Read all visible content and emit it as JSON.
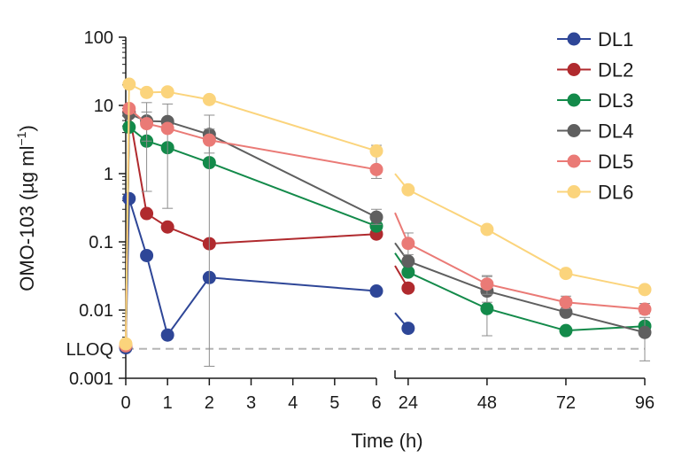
{
  "chart_data": {
    "type": "line",
    "xlabel": "Time (h)",
    "ylabel": "OMO-103 (µg ml",
    "ylabel_superscript": "−1",
    "ylabel_close": ")",
    "yscale": "log",
    "ylim": [
      0.001,
      100
    ],
    "y_ticks": [
      {
        "value": 100,
        "label": "100"
      },
      {
        "value": 10,
        "label": "10"
      },
      {
        "value": 1,
        "label": "1"
      },
      {
        "value": 0.1,
        "label": "0.1"
      },
      {
        "value": 0.01,
        "label": "0.01"
      },
      {
        "value": 0.001,
        "label": "0.001"
      }
    ],
    "lloq": {
      "label": "LLOQ",
      "value": 0.0027
    },
    "x_axis_segments": [
      {
        "range": [
          0,
          6
        ],
        "ticks": [
          0,
          1,
          2,
          3,
          4,
          5,
          6
        ]
      },
      {
        "range": [
          20,
          96
        ],
        "ticks": [
          24,
          48,
          72,
          96
        ]
      }
    ],
    "series": [
      {
        "name": "DL1",
        "color": "#2e4697",
        "points": [
          {
            "x": 0,
            "y": 0.0028
          },
          {
            "x": 0.08,
            "y": 0.43
          },
          {
            "x": 0.5,
            "y": 0.063
          },
          {
            "x": 1,
            "y": 0.0043
          },
          {
            "x": 2,
            "y": 0.03
          },
          {
            "x": 6,
            "y": 0.019
          },
          {
            "x": 24,
            "y": 0.0054
          }
        ],
        "errors": []
      },
      {
        "name": "DL2",
        "color": "#b02a2e",
        "points": [
          {
            "x": 0,
            "y": 0.003
          },
          {
            "x": 0.08,
            "y": 8
          },
          {
            "x": 0.5,
            "y": 0.26
          },
          {
            "x": 1,
            "y": 0.165
          },
          {
            "x": 2,
            "y": 0.094
          },
          {
            "x": 6,
            "y": 0.13
          },
          {
            "x": 24,
            "y": 0.021
          }
        ],
        "errors": []
      },
      {
        "name": "DL3",
        "color": "#138a4a",
        "points": [
          {
            "x": 0,
            "y": 0.003
          },
          {
            "x": 0.08,
            "y": 4.8
          },
          {
            "x": 0.5,
            "y": 3.0
          },
          {
            "x": 1,
            "y": 2.4
          },
          {
            "x": 2,
            "y": 1.45
          },
          {
            "x": 6,
            "y": 0.17
          },
          {
            "x": 24,
            "y": 0.036
          },
          {
            "x": 48,
            "y": 0.0105
          },
          {
            "x": 72,
            "y": 0.005
          },
          {
            "x": 96,
            "y": 0.0058
          }
        ],
        "errors": [
          {
            "x": 48,
            "lo": 0.0042,
            "hi": 0.019
          }
        ]
      },
      {
        "name": "DL4",
        "color": "#5f5f5f",
        "points": [
          {
            "x": 0,
            "y": 0.003
          },
          {
            "x": 0.08,
            "y": 7.5
          },
          {
            "x": 0.5,
            "y": 5.9
          },
          {
            "x": 1,
            "y": 5.8
          },
          {
            "x": 2,
            "y": 3.75
          },
          {
            "x": 6,
            "y": 0.23
          },
          {
            "x": 24,
            "y": 0.052
          },
          {
            "x": 48,
            "y": 0.019
          },
          {
            "x": 72,
            "y": 0.0093
          },
          {
            "x": 96,
            "y": 0.0047
          }
        ],
        "errors": [
          {
            "x": 0.5,
            "lo": 0.55,
            "hi": 11.0
          },
          {
            "x": 1,
            "lo": 0.31,
            "hi": 10.5
          },
          {
            "x": 2,
            "lo": 0.0015,
            "hi": 7.2
          },
          {
            "x": 6,
            "lo": 0.18,
            "hi": 0.3
          },
          {
            "x": 48,
            "lo": 0.013,
            "hi": 0.032
          },
          {
            "x": 96,
            "lo": 0.0018,
            "hi": 0.0078
          }
        ]
      },
      {
        "name": "DL5",
        "color": "#ea7a76",
        "points": [
          {
            "x": 0,
            "y": 0.003
          },
          {
            "x": 0.08,
            "y": 9.0
          },
          {
            "x": 0.5,
            "y": 5.4
          },
          {
            "x": 1,
            "y": 4.6
          },
          {
            "x": 2,
            "y": 3.1
          },
          {
            "x": 6,
            "y": 1.15
          },
          {
            "x": 24,
            "y": 0.095
          },
          {
            "x": 48,
            "y": 0.024
          },
          {
            "x": 72,
            "y": 0.013
          },
          {
            "x": 96,
            "y": 0.0103
          }
        ],
        "errors": [
          {
            "x": 0.5,
            "lo": 3.0,
            "hi": 8.0
          },
          {
            "x": 2,
            "lo": 2.0,
            "hi": 4.5
          },
          {
            "x": 6,
            "lo": 0.85,
            "hi": 2.6
          },
          {
            "x": 24,
            "lo": 0.065,
            "hi": 0.135
          },
          {
            "x": 48,
            "lo": 0.017,
            "hi": 0.031
          },
          {
            "x": 72,
            "lo": 0.0105,
            "hi": 0.016
          },
          {
            "x": 96,
            "lo": 0.0088,
            "hi": 0.0125
          }
        ]
      },
      {
        "name": "DL6",
        "color": "#fbd47c",
        "points": [
          {
            "x": 0,
            "y": 0.0032
          },
          {
            "x": 0.08,
            "y": 20.5
          },
          {
            "x": 0.5,
            "y": 15.5
          },
          {
            "x": 1,
            "y": 15.8
          },
          {
            "x": 2,
            "y": 12.2
          },
          {
            "x": 6,
            "y": 2.15
          },
          {
            "x": 24,
            "y": 0.58
          },
          {
            "x": 48,
            "y": 0.152
          },
          {
            "x": 72,
            "y": 0.0345
          },
          {
            "x": 96,
            "y": 0.02
          }
        ],
        "errors": []
      }
    ],
    "legend_position": "top-right"
  }
}
